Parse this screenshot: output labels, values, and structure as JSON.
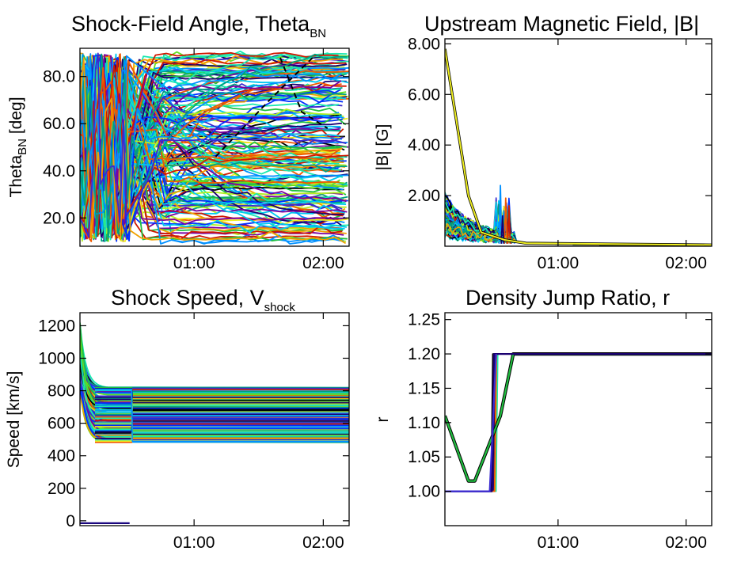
{
  "figure": {
    "palette": [
      "#1a0070",
      "#3a2ad0",
      "#0030ff",
      "#0090ff",
      "#00c8f0",
      "#18e8b0",
      "#20c040",
      "#60e020",
      "#b0f020",
      "#f0f020",
      "#f0a000",
      "#f05a00",
      "#d01800",
      "#7a00a0",
      "#00a080",
      "#000000"
    ]
  },
  "chart_data": [
    {
      "id": "theta",
      "type": "line",
      "title": "Shock-Field Angle, Theta",
      "title_sub": "BN",
      "ylabel": "Theta",
      "ylabel_sub": "BN",
      "ylabel_suffix": " [deg]",
      "xlabel": "",
      "x_ticks": [
        "01:00",
        "02:00"
      ],
      "x_tick_values": [
        60,
        120
      ],
      "xlim": [
        7,
        132
      ],
      "ylim": [
        8,
        92
      ],
      "y_ticks": [
        20,
        40,
        60,
        80
      ],
      "y_tick_labels": [
        "20.0",
        "40.0",
        "60.0",
        "80.0"
      ],
      "series_summary": "~180 field-line traces; chaotic between 10 and 90 deg before 00:45, then settling to near-constant values spanning 10–90 deg through 02:12"
    },
    {
      "id": "bfield",
      "type": "line",
      "title": "Upstream Magnetic Field, |B|",
      "ylabel": "|B| [G]",
      "xlabel": "",
      "x_ticks": [
        "01:00",
        "02:00"
      ],
      "x_tick_values": [
        60,
        120
      ],
      "xlim": [
        7,
        132
      ],
      "ylim": [
        0,
        8.2
      ],
      "y_ticks": [
        2,
        4,
        6,
        8
      ],
      "y_tick_labels": [
        "2.00",
        "4.00",
        "6.00",
        "8.00"
      ],
      "series": [
        {
          "color": "#f0f020",
          "x": [
            7,
            18,
            24,
            35,
            45,
            132
          ],
          "y": [
            7.8,
            2.0,
            0.55,
            0.25,
            0.12,
            0.05
          ]
        }
      ],
      "series_summary": "Most traces start 0.5–2.5 G, with spikes up to ~2.4 G near 00:32–00:40, then decay to ~0.05 G after 01:00"
    },
    {
      "id": "vshock",
      "type": "line",
      "title": "Shock Speed, V",
      "title_sub": "shock",
      "ylabel": "Speed [km/s]",
      "xlabel": "",
      "x_ticks": [
        "01:00",
        "02:00"
      ],
      "x_tick_values": [
        60,
        120
      ],
      "xlim": [
        7,
        132
      ],
      "ylim": [
        -30,
        1280
      ],
      "y_ticks": [
        0,
        200,
        400,
        600,
        800,
        1000,
        1200
      ],
      "y_tick_labels": [
        "0",
        "200",
        "400",
        "600",
        "800",
        "1000",
        "1200"
      ],
      "series_summary": "Speeds start 800–1200 km/s, drop by 00:14 to constant bands between ~480 and ~820 km/s through 02:12; a few traces near 0 between 00:07 and 00:30"
    },
    {
      "id": "rjump",
      "type": "line",
      "title": "Density Jump Ratio, r",
      "ylabel": "r",
      "xlabel": "",
      "x_ticks": [
        "01:00",
        "02:00"
      ],
      "x_tick_values": [
        60,
        120
      ],
      "xlim": [
        7,
        132
      ],
      "ylim": [
        0.95,
        1.26
      ],
      "y_ticks": [
        1.0,
        1.05,
        1.1,
        1.15,
        1.2,
        1.25
      ],
      "y_tick_labels": [
        "1.00",
        "1.05",
        "1.10",
        "1.15",
        "1.20",
        "1.25"
      ],
      "series": [
        {
          "name": "",
          "color": "#20c040",
          "x": [
            7,
            18,
            21,
            33,
            39,
            132
          ],
          "y": [
            1.11,
            1.015,
            1.015,
            1.11,
            1.2,
            1.2
          ]
        },
        {
          "name": "",
          "color": "#1a0070",
          "x": [
            7,
            29,
            30,
            31.5,
            132
          ],
          "y": [
            1.0,
            1.0,
            1.2,
            1.2,
            1.2
          ]
        },
        {
          "name": "",
          "color": "#3a2ad0",
          "x": [
            7,
            28,
            31
          ],
          "y": [
            1.0,
            1.0,
            1.2
          ]
        }
      ]
    }
  ]
}
